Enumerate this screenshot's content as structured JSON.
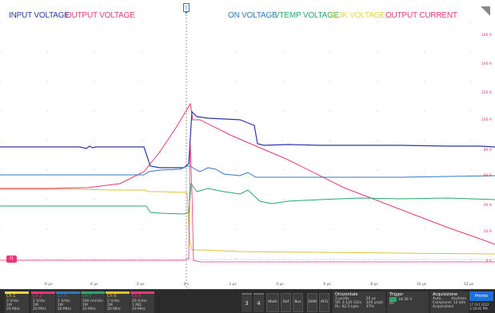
{
  "legend": {
    "input_voltage": "INPUT VOLTAGE",
    "output_voltage": "OUTPUT VOLTAGE",
    "on_voltage": "ON VOLTAGE",
    "vtemp_voltage": "VTEMP VOLTAGE",
    "gok_voltage": "GOK VOLTAGE",
    "output_current": "OUTPUT CURRENT"
  },
  "colors": {
    "input": "#2b38a8",
    "output": "#e2387a",
    "on": "#2f79c4",
    "vtemp": "#27a96a",
    "gok": "#d8c531",
    "current": "#e63877"
  },
  "right_axis": [
    "180 A",
    "160 A",
    "140 A",
    "120 A",
    "100 A",
    "80 A",
    "60 A",
    "40 A",
    "20 A",
    "0 A"
  ],
  "x_axis": [
    "-6 µs",
    "-4 µs",
    "-2 µs",
    "0 s",
    "2 µs",
    "4 µs",
    "6 µs",
    "8 µs",
    "10 µs",
    "12 µs"
  ],
  "ground_marker": "I1",
  "channels": [
    {
      "title": "Ch 1",
      "l1": "2 V/div",
      "l2": "1M",
      "l3": "20 MHz",
      "color": "#e8d742"
    },
    {
      "title": "Ch 2",
      "l1": "1 V/div",
      "l2": "1M",
      "l3": "20 MHz",
      "color": "#e2387a"
    },
    {
      "title": "Ch 5",
      "l1": "1 V/div",
      "l2": "1M",
      "l3": "20 MHz",
      "color": "#2f79c4"
    },
    {
      "title": "Ch 7",
      "l1": "500 mV/div",
      "l2": "1M",
      "l3": "20 MHz",
      "color": "#27a96a"
    },
    {
      "title": "Ch 6",
      "l1": "2 V/div",
      "l2": "1M",
      "l3": "20 MHz",
      "color": "#d8c531"
    },
    {
      "title": "Ch 8",
      "l1": "20 A/div",
      "l2": "1 MΩ",
      "l3": "20 MHz",
      "color": "#e63877"
    }
  ],
  "buttons": {
    "b3": "3",
    "b4": "4",
    "math": "Math",
    "ref": "Ref",
    "bus": "Bus",
    "dvm": "DVM",
    "afg": "AFG"
  },
  "horizontal": {
    "title": "Orizzontale",
    "l1": "2 µs/div",
    "l2": "SR: 3.125 GS/s",
    "l3": "RL: 62.5 kpts",
    "r1": "20 µs",
    "r2": "320 ps/pt",
    "r3": "37%"
  },
  "trigger": {
    "title": "Trigger",
    "l1": "18.36 V",
    "l2": "DC"
  },
  "acquisition": {
    "title": "Acquisizione",
    "l1": "Auto,",
    "l2": "Campione: 12 bits",
    "l3": "Acquisizioni",
    "r1": "Analizza"
  },
  "status": {
    "run": "Pronto",
    "date": "17 Oct 2022",
    "time": "3:19:05 PM"
  }
}
